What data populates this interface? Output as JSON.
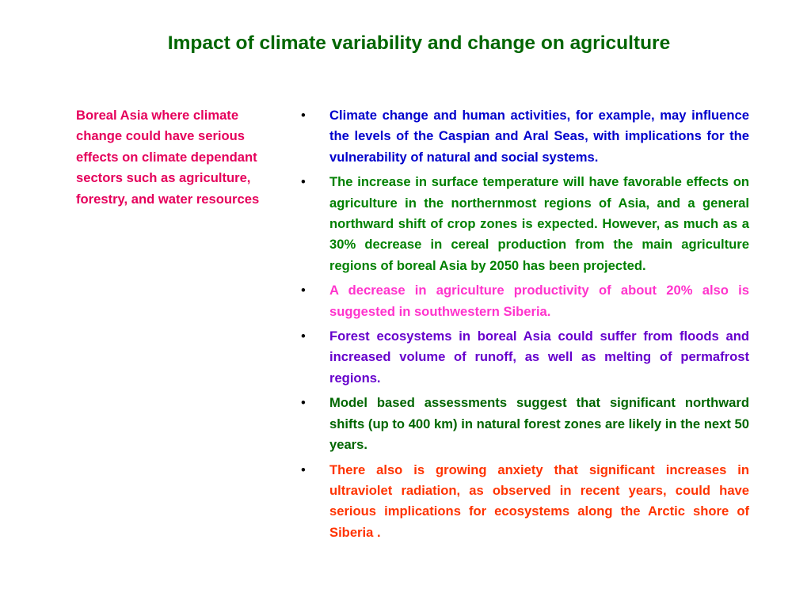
{
  "slide": {
    "title": "Impact of climate variability and change on agriculture",
    "title_color": "#006600",
    "side_note": "Boreal Asia where climate change could have serious effects on climate dependant sectors such as agriculture, forestry, and water resources",
    "side_note_color": "#e5005b",
    "bullet_symbol": "•",
    "bullets": [
      {
        "text": "Climate change and human activities, for example, may influence the levels of the Caspian and Aral Seas, with implications for the vulnerability of natural and social systems.",
        "color": "#0000cc"
      },
      {
        "text": "The increase in surface temperature will have favorable effects on agriculture in the northernmost regions of Asia, and a general northward shift of crop zones is expected. However, as much as a 30% decrease in cereal production from the main agriculture regions of boreal Asia by 2050 has been projected.",
        "color": "#008000"
      },
      {
        "text": "A decrease in agriculture productivity of about 20% also is suggested in southwestern Siberia.",
        "color": "#ff33cc"
      },
      {
        "text": "Forest ecosystems in boreal Asia could suffer from floods and increased volume of runoff, as well as melting of permafrost regions.",
        "color": "#6600cc"
      },
      {
        "text": "Model based assessments suggest that significant northward shifts (up to 400 km) in natural forest zones are likely in the next 50 years.",
        "color": "#006600"
      },
      {
        "text": "There also is growing anxiety that significant increases in ultraviolet radiation, as observed in recent years, could have serious implications for ecosystems along the Arctic shore of Siberia .",
        "color": "#ff3300"
      }
    ]
  }
}
